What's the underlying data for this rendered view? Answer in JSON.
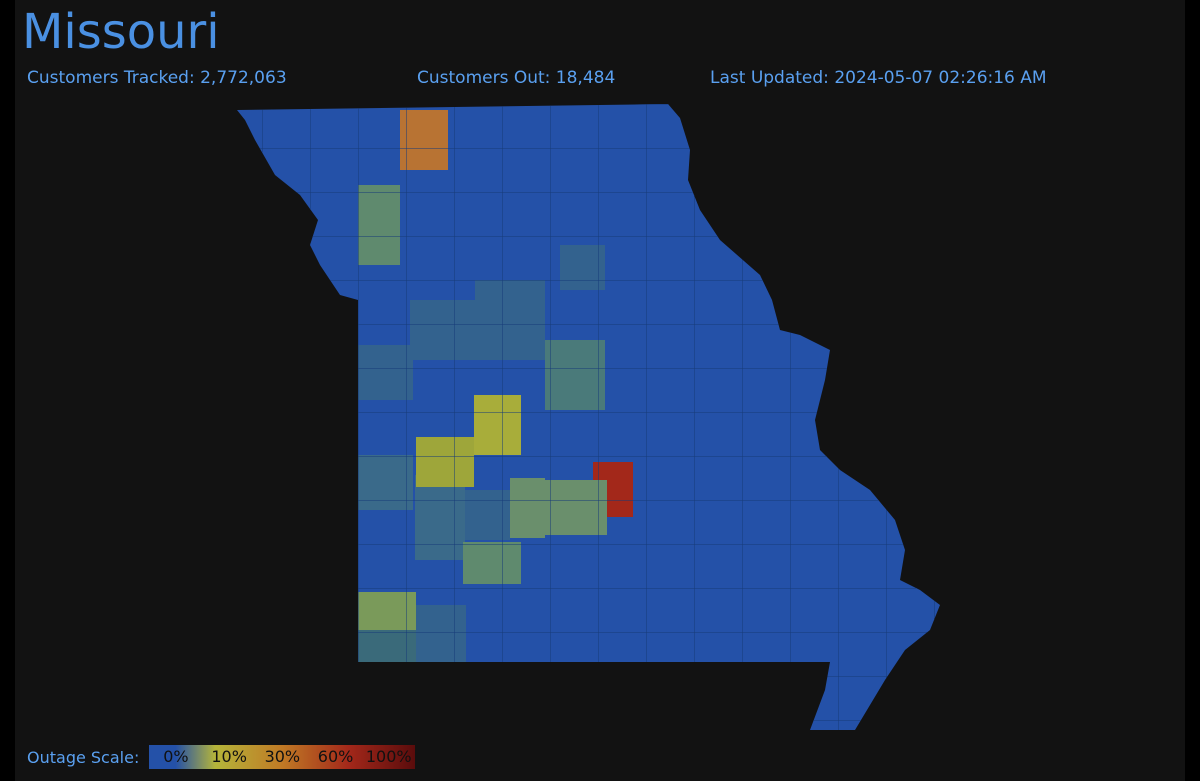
{
  "header": {
    "title": "Missouri",
    "stats": [
      {
        "label": "Customers Tracked:",
        "value": "2,772,063"
      },
      {
        "label": "Customers Out:",
        "value": "18,484"
      },
      {
        "label": "Last Updated:",
        "value": "2024-05-07 02:26:16 AM"
      }
    ]
  },
  "legend": {
    "label": "Outage Scale:",
    "stops": [
      "0%",
      "10%",
      "30%",
      "60%",
      "100%"
    ]
  }
}
